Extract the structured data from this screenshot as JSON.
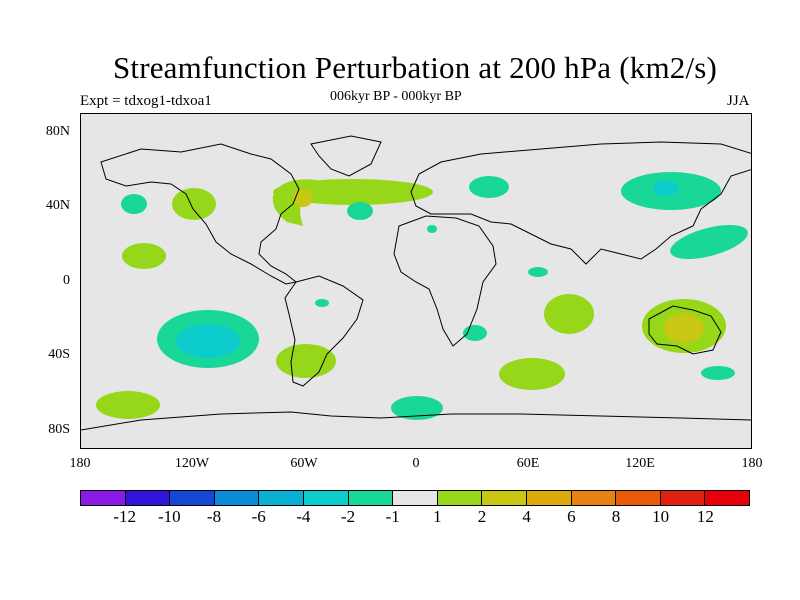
{
  "title": "Streamfunction Perturbation at 200 hPa (km2/s)",
  "subtitle": "006kyr BP - 000kyr BP",
  "experiment": "Expt = tdxog1-tdxoa1",
  "season": "JJA",
  "lat_labels": [
    "80N",
    "40N",
    "0",
    "40S",
    "80S"
  ],
  "lon_labels": [
    "180",
    "120W",
    "60W",
    "0",
    "60E",
    "120E",
    "180"
  ],
  "colorbar": {
    "labels": [
      "-12",
      "-10",
      "-8",
      "-6",
      "-4",
      "-2",
      "-1",
      "1",
      "2",
      "4",
      "6",
      "8",
      "10",
      "12"
    ],
    "colors": [
      "#8c1ae6",
      "#3014dc",
      "#1448d2",
      "#0a8ad6",
      "#0ab0d2",
      "#0ccccc",
      "#19d796",
      "#e6e6e6",
      "#96d719",
      "#c8c814",
      "#dcaa0a",
      "#e68214",
      "#e85a0a",
      "#e02010",
      "#e6000a"
    ]
  },
  "colors": {
    "map_background": "#e6e6e6",
    "coastline": "#000000"
  }
}
